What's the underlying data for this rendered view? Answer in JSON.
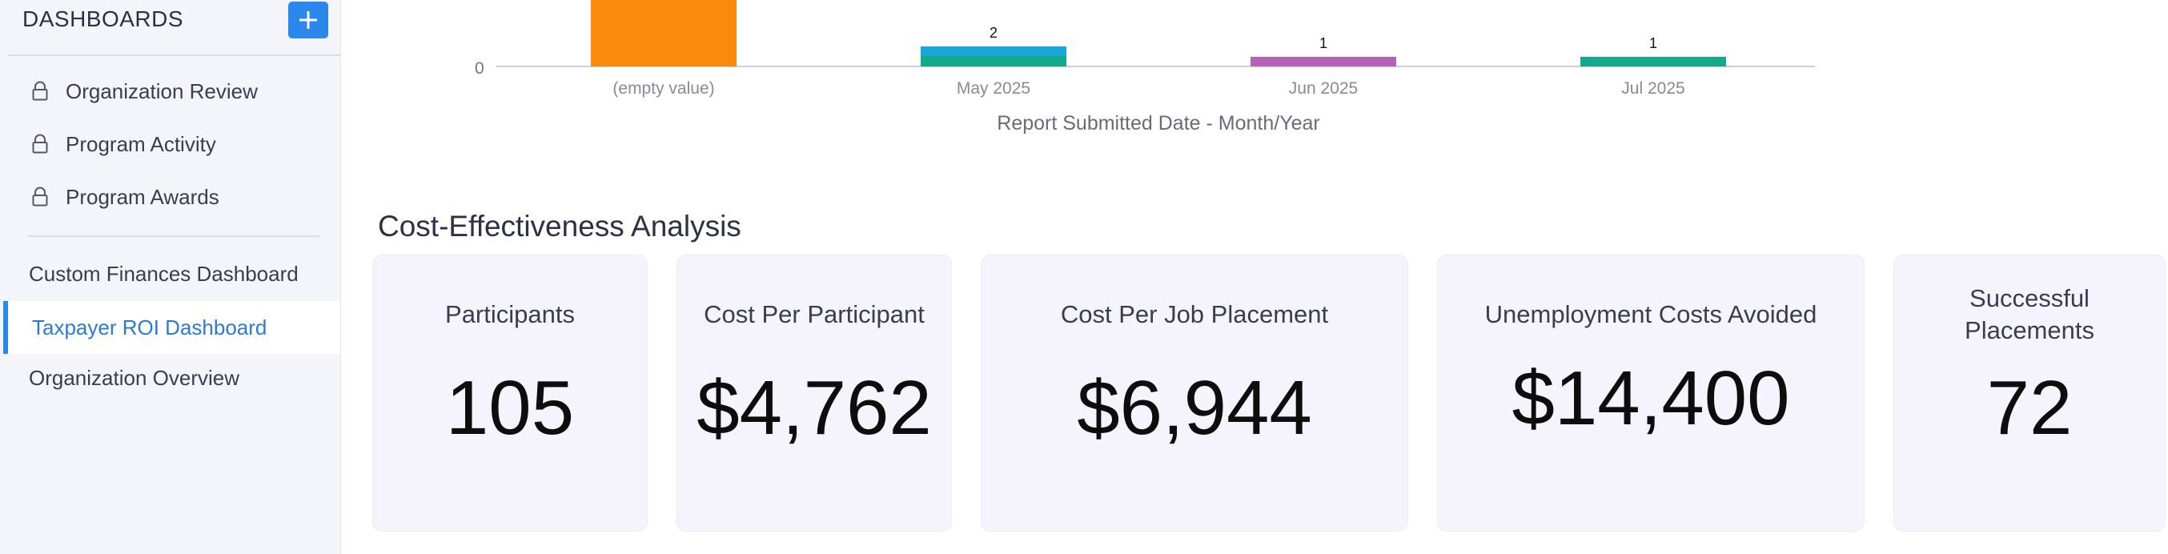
{
  "sidebar": {
    "title": "DASHBOARDS",
    "add_label": "+",
    "locked_items": [
      {
        "label": "Organization Review"
      },
      {
        "label": "Program Activity"
      },
      {
        "label": "Program Awards"
      }
    ],
    "items": [
      {
        "label": "Custom Finances Dashboard",
        "active": false
      },
      {
        "label": "Taxpayer ROI Dashboard",
        "active": true
      },
      {
        "label": "Organization Overview",
        "active": false
      }
    ]
  },
  "chart_data": {
    "type": "bar",
    "xlabel": "Report Submitted Date - Month/Year",
    "y_tick_visible": "0",
    "categories": [
      "(empty value)",
      "May 2025",
      "Jun 2025",
      "Jul 2025"
    ],
    "bars": [
      {
        "category": "(empty value)",
        "segments": [
          {
            "color": "#f98a0c"
          }
        ],
        "label": ""
      },
      {
        "category": "May 2025",
        "segments": [
          {
            "value": 1,
            "color": "#13a98c"
          },
          {
            "value": 1,
            "color": "#1ba6da"
          }
        ],
        "label": "2"
      },
      {
        "category": "Jun 2025",
        "segments": [
          {
            "value": 1,
            "color": "#b562b8"
          }
        ],
        "label": "1"
      },
      {
        "category": "Jul 2025",
        "segments": [
          {
            "value": 1,
            "color": "#13a98c"
          }
        ],
        "label": "1"
      }
    ]
  },
  "section": {
    "title": "Cost-Effectiveness Analysis",
    "cards": [
      {
        "label": "Participants",
        "value": "105"
      },
      {
        "label": "Cost Per Participant",
        "value": "$4,762"
      },
      {
        "label": "Cost Per Job Placement",
        "value": "$6,944"
      },
      {
        "label": "Unemployment Costs Avoided",
        "value": "$14,400"
      },
      {
        "label_lines": [
          "Successful",
          "Placements"
        ],
        "value": "72"
      }
    ]
  }
}
